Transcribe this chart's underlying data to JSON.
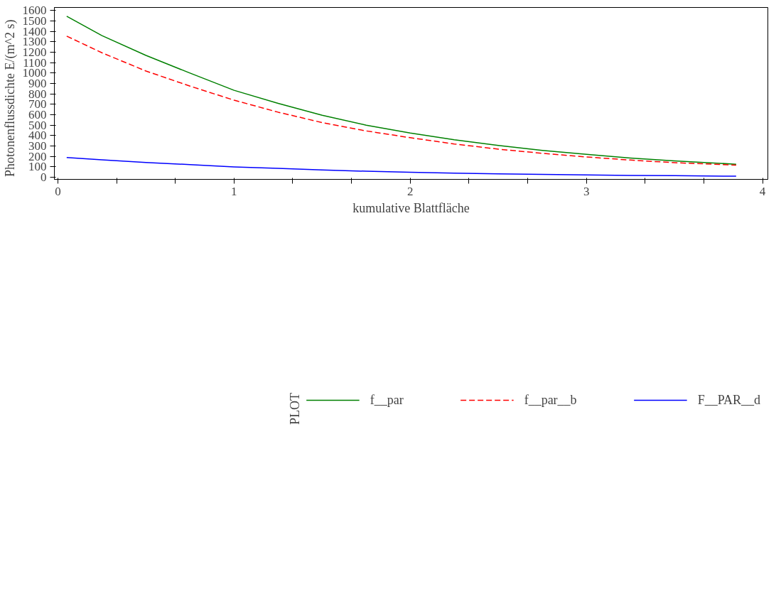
{
  "chart_data": {
    "type": "line",
    "xlabel": "kumulative Blattfläche",
    "ylabel": "Photonenflussdichte    E/(m^2 s)",
    "legend_title": "PLOT",
    "x": [
      0.05,
      0.25,
      0.5,
      0.75,
      1,
      1.25,
      1.5,
      1.75,
      2,
      2.25,
      2.5,
      2.75,
      3,
      3.25,
      3.5,
      3.85
    ],
    "series": [
      {
        "name": "f__par",
        "color": "#008000",
        "line_style": "solid",
        "values": [
          1545,
          1360,
          1170,
          1000,
          835,
          710,
          595,
          500,
          425,
          360,
          305,
          258,
          220,
          185,
          158,
          125
        ]
      },
      {
        "name": "f__par__b",
        "color": "#ff0000",
        "line_style": "dashed",
        "values": [
          1355,
          1195,
          1020,
          875,
          740,
          625,
          525,
          445,
          380,
          320,
          270,
          230,
          195,
          165,
          140,
          117
        ]
      },
      {
        "name": "F__PAR__d",
        "color": "#0000ff",
        "line_style": "solid",
        "values": [
          190,
          168,
          142,
          122,
          100,
          85,
          70,
          58,
          48,
          40,
          33,
          27,
          22,
          18,
          15,
          10
        ]
      }
    ],
    "xlim": [
      -0.02,
      4.03
    ],
    "ylim": [
      -20,
      1630
    ],
    "xticks": [
      0,
      {
        "value": 0.3333,
        "label": null
      },
      {
        "value": 0.6667,
        "label": null
      },
      1,
      {
        "value": 1.3333,
        "label": null
      },
      {
        "value": 1.6667,
        "label": null
      },
      2,
      {
        "value": 2.3333,
        "label": null
      },
      {
        "value": 2.6667,
        "label": null
      },
      3,
      {
        "value": 3.3333,
        "label": null
      },
      {
        "value": 3.6667,
        "label": null
      },
      4
    ],
    "yticks": [
      0,
      100,
      200,
      300,
      400,
      500,
      600,
      700,
      800,
      900,
      1000,
      1100,
      1200,
      1300,
      1400,
      1500,
      1600
    ],
    "grid": false,
    "legend": "bottom"
  }
}
